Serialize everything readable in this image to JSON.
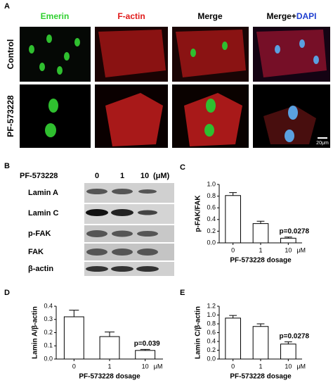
{
  "figure": {
    "panel_labels": [
      "A",
      "B",
      "C",
      "D",
      "E"
    ],
    "panel_a": {
      "columns": [
        "Emerin",
        "F-actin",
        "Merge"
      ],
      "last_column": [
        "Merge+",
        "DAPI"
      ],
      "rows": [
        "Control",
        "PF-573228"
      ],
      "scale_bar": "20μm"
    },
    "panel_b": {
      "treatment": "PF-573228",
      "doses": [
        "0",
        "1",
        "10"
      ],
      "unit": "(μM)",
      "proteins": [
        "Lamin A",
        "Lamin C",
        "p-FAK",
        "FAK",
        "β-actin"
      ]
    }
  },
  "chart_data": [
    {
      "type": "bar",
      "y_label": "p-FAK/FAK",
      "x_label": "PF-573228 dosage",
      "x_unit": "μM",
      "categories": [
        "0",
        "1",
        "10"
      ],
      "values": [
        0.81,
        0.33,
        0.08
      ],
      "errors": [
        0.05,
        0.04,
        0.02
      ],
      "annotation": "p=0.0278",
      "color": "#ffffff",
      "ylim": [
        0,
        1
      ],
      "yticks": [
        {
          "value": 0,
          "label": "0.0"
        },
        0.2,
        0.4,
        0.6,
        0.8,
        {
          "value": 1,
          "label": "1.0"
        }
      ]
    },
    {
      "type": "bar",
      "y_label": "Lamin A/β-actin",
      "x_label": "PF-573228 dosage",
      "x_unit": "μM",
      "categories": [
        "0",
        "1",
        "10"
      ],
      "values": [
        0.32,
        0.17,
        0.065
      ],
      "errors": [
        0.05,
        0.035,
        0.008
      ],
      "annotation": "p=0.039",
      "color": "#ffffff",
      "ylim": [
        0,
        0.4
      ],
      "yticks": [
        {
          "value": 0,
          "label": "0.0"
        },
        0.1,
        0.2,
        0.3,
        0.4
      ]
    },
    {
      "type": "bar",
      "y_label": "Lamin C/β-actin",
      "x_label": "PF-573228 dosage",
      "x_unit": "μM",
      "categories": [
        "0",
        "1",
        "10"
      ],
      "values": [
        0.93,
        0.74,
        0.34
      ],
      "errors": [
        0.06,
        0.06,
        0.05
      ],
      "annotation": "p=0.0278",
      "color": "#ffffff",
      "ylim": [
        0,
        1.2
      ],
      "yticks": [
        {
          "value": 0,
          "label": "0.0"
        },
        0.2,
        0.4,
        0.6,
        0.8,
        {
          "value": 1,
          "label": "1.0"
        },
        1.2
      ]
    }
  ]
}
